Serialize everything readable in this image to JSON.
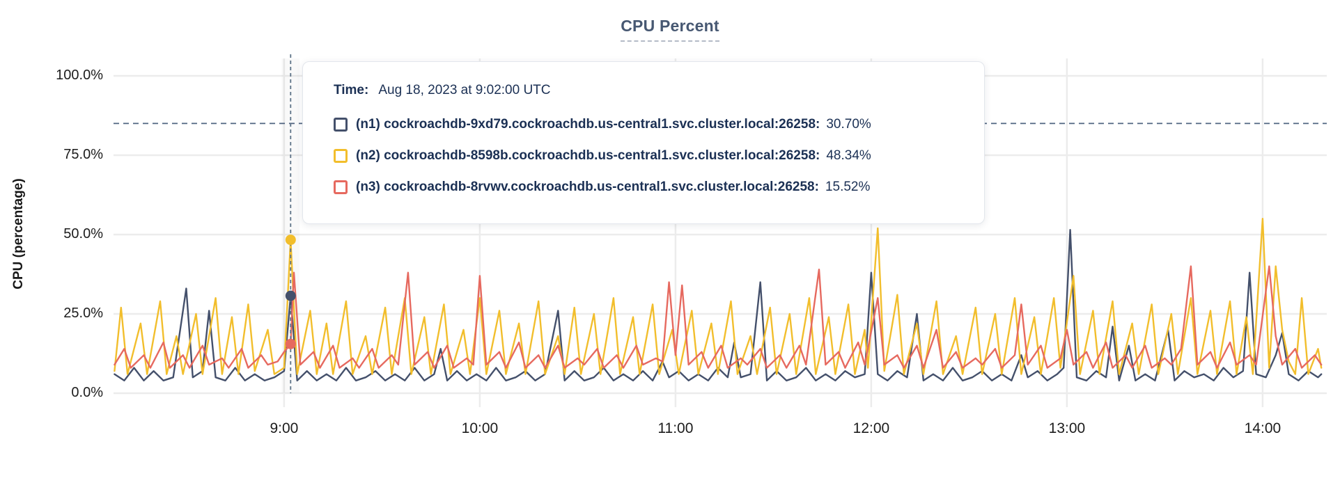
{
  "title": "CPU Percent",
  "y_axis": {
    "label": "CPU (percentage)"
  },
  "tooltip": {
    "time_label": "Time:",
    "time_value": "Aug 18, 2023 at 9:02:00 UTC",
    "rows": [
      {
        "series": "n1",
        "name": "(n1) cockroachdb-9xd79.cockroachdb.us-central1.svc.cluster.local:26258:",
        "value": "30.70%"
      },
      {
        "series": "n2",
        "name": "(n2) cockroachdb-8598b.cockroachdb.us-central1.svc.cluster.local:26258:",
        "value": "48.34%"
      },
      {
        "series": "n3",
        "name": "(n3) cockroachdb-8rvwv.cockroachdb.us-central1.svc.cluster.local:26258:",
        "value": "15.52%"
      }
    ]
  },
  "colors": {
    "n1": "#44506b",
    "n2": "#f2be2c",
    "n3": "#e6695f",
    "grid": "#ececec",
    "threshold": "#4f6480",
    "hover_line": "#5d7287",
    "title": "#475872",
    "tooltip_text": "#1b3054"
  },
  "chart_data": {
    "type": "line",
    "title": "CPU Percent",
    "ylabel": "CPU (percentage)",
    "ylim": [
      0,
      100
    ],
    "grid": true,
    "x_unit": "minutes since 08:08 UTC, axis spans 08:08 - 14:18",
    "x_ticks": [
      {
        "t": 52,
        "label": "9:00"
      },
      {
        "t": 112,
        "label": "10:00"
      },
      {
        "t": 172,
        "label": "11:00"
      },
      {
        "t": 232,
        "label": "12:00"
      },
      {
        "t": 292,
        "label": "13:00"
      },
      {
        "t": 352,
        "label": "14:00"
      }
    ],
    "y_ticks": [
      {
        "v": 0,
        "label": "0.0%"
      },
      {
        "v": 25,
        "label": "25.0%"
      },
      {
        "v": 50,
        "label": "50.0%"
      },
      {
        "v": 75,
        "label": "75.0%"
      },
      {
        "v": 100,
        "label": "100.0%"
      }
    ],
    "threshold_pct": 85,
    "hover": {
      "t": 54,
      "time": "Aug 18, 2023 at 9:02:00 UTC",
      "values": {
        "n1": 30.7,
        "n2": 48.34,
        "n3": 15.52
      }
    },
    "series": [
      {
        "id": "n1",
        "name": "(n1) cockroachdb-9xd79.cockroachdb.us-central1.svc.cluster.local:26258",
        "points": [
          0,
          6,
          3,
          4,
          6,
          8,
          9,
          4,
          12,
          7,
          15,
          4,
          18,
          5,
          22,
          33,
          24,
          5,
          27,
          7,
          29,
          26,
          31,
          5,
          34,
          4,
          37,
          8,
          40,
          4,
          43,
          6,
          46,
          4,
          49,
          5,
          52,
          7,
          54,
          30.7,
          56,
          4,
          59,
          7,
          62,
          4,
          65,
          6,
          68,
          4,
          71,
          8,
          74,
          4,
          77,
          5,
          80,
          7,
          83,
          4,
          86,
          6,
          89,
          4,
          92,
          8,
          95,
          4,
          98,
          6,
          100,
          14,
          102,
          4,
          105,
          7,
          108,
          4,
          111,
          6,
          114,
          4,
          117,
          8,
          120,
          4,
          123,
          5,
          126,
          7,
          129,
          4,
          132,
          6,
          136,
          26,
          138,
          4,
          141,
          7,
          144,
          4,
          147,
          5,
          150,
          8,
          153,
          4,
          156,
          6,
          159,
          4,
          162,
          7,
          165,
          4,
          168,
          10,
          170,
          5,
          173,
          7,
          176,
          4,
          179,
          6,
          182,
          4,
          185,
          8,
          188,
          5,
          190,
          16,
          192,
          5,
          195,
          6,
          198,
          35,
          200,
          4,
          203,
          7,
          206,
          4,
          209,
          5,
          212,
          8,
          215,
          4,
          218,
          6,
          221,
          4,
          224,
          7,
          227,
          5,
          230,
          6,
          232,
          38,
          234,
          6,
          237,
          4,
          240,
          7,
          243,
          5,
          246,
          25,
          248,
          4,
          251,
          6,
          254,
          4,
          257,
          8,
          260,
          4,
          263,
          5,
          266,
          7,
          269,
          4,
          272,
          6,
          275,
          4,
          278,
          12,
          280,
          5,
          283,
          7,
          286,
          4,
          289,
          6,
          291,
          8,
          293,
          51.5,
          295,
          5,
          298,
          4,
          301,
          7,
          304,
          5,
          306,
          21,
          308,
          4,
          311,
          15,
          313,
          4,
          316,
          6,
          319,
          4,
          323,
          20,
          325,
          4,
          328,
          7,
          331,
          5,
          334,
          6,
          337,
          4,
          340,
          8,
          343,
          5,
          346,
          7,
          348,
          38,
          350,
          6,
          353,
          5,
          356,
          12,
          358,
          19,
          360,
          6,
          363,
          4,
          366,
          7,
          369,
          5,
          370,
          6
        ]
      },
      {
        "id": "n2",
        "name": "(n2) cockroachdb-8598b.cockroachdb.us-central1.svc.cluster.local:26258",
        "points": [
          0,
          7,
          2,
          27,
          4,
          6,
          8,
          22,
          10,
          6,
          14,
          29,
          16,
          6,
          19,
          18,
          21,
          6,
          25,
          25,
          27,
          6,
          31,
          30,
          33,
          6,
          36,
          24,
          38,
          6,
          41,
          28,
          43,
          7,
          47,
          20,
          49,
          6,
          52,
          8,
          54,
          48.3,
          56,
          6,
          60,
          26,
          62,
          6,
          65,
          22,
          67,
          6,
          71,
          29,
          73,
          6,
          77,
          18,
          79,
          6,
          83,
          27,
          85,
          6,
          89,
          30,
          91,
          6,
          95,
          24,
          97,
          6,
          101,
          28,
          103,
          6,
          107,
          20,
          109,
          6,
          112,
          30,
          114,
          6,
          118,
          26,
          120,
          6,
          124,
          22,
          126,
          6,
          130,
          29,
          132,
          6,
          136,
          18,
          138,
          6,
          141,
          27,
          143,
          6,
          147,
          25,
          149,
          6,
          153,
          30,
          155,
          6,
          159,
          24,
          161,
          6,
          165,
          28,
          167,
          6,
          171,
          20,
          173,
          6,
          177,
          26,
          179,
          6,
          183,
          22,
          185,
          6,
          189,
          29,
          191,
          6,
          195,
          18,
          197,
          6,
          201,
          27,
          203,
          6,
          207,
          25,
          209,
          6,
          213,
          30,
          215,
          6,
          219,
          24,
          221,
          6,
          225,
          28,
          227,
          6,
          230,
          20,
          231,
          8,
          234,
          52,
          236,
          7,
          240,
          31,
          242,
          6,
          246,
          22,
          248,
          6,
          252,
          29,
          254,
          6,
          258,
          18,
          260,
          6,
          264,
          27,
          266,
          6,
          270,
          25,
          272,
          6,
          276,
          30,
          278,
          6,
          282,
          24,
          284,
          6,
          288,
          30,
          290,
          8,
          294,
          37,
          296,
          6,
          300,
          26,
          302,
          6,
          306,
          29,
          308,
          6,
          312,
          22,
          314,
          6,
          318,
          28,
          320,
          6,
          324,
          25,
          326,
          6,
          330,
          30,
          332,
          6,
          336,
          26,
          338,
          6,
          342,
          29,
          344,
          6,
          347,
          24,
          349,
          6,
          352,
          55,
          354,
          8,
          356,
          40,
          358,
          20,
          360,
          10,
          362,
          6,
          364,
          30,
          366,
          6,
          369,
          14,
          370,
          8
        ]
      },
      {
        "id": "n3",
        "name": "(n3) cockroachdb-8rvwv.cockroachdb.us-central1.svc.cluster.local:26258",
        "points": [
          0,
          9,
          3,
          14,
          5,
          8,
          9,
          12,
          11,
          8,
          15,
          16,
          17,
          8,
          21,
          12,
          23,
          8,
          27,
          15,
          29,
          9,
          33,
          11,
          35,
          8,
          39,
          14,
          41,
          8,
          45,
          12,
          47,
          9,
          50,
          10,
          52,
          13,
          54,
          15.5,
          55,
          38,
          57,
          9,
          61,
          13,
          63,
          8,
          67,
          15,
          69,
          8,
          73,
          11,
          75,
          8,
          79,
          14,
          81,
          8,
          85,
          12,
          87,
          9,
          90,
          38,
          92,
          9,
          96,
          13,
          98,
          8,
          102,
          15,
          104,
          8,
          108,
          11,
          110,
          9,
          112,
          37,
          114,
          9,
          118,
          13,
          120,
          8,
          124,
          16,
          126,
          8,
          130,
          12,
          132,
          8,
          136,
          15,
          138,
          8,
          142,
          11,
          144,
          9,
          148,
          14,
          150,
          8,
          154,
          12,
          156,
          8,
          160,
          15,
          162,
          9,
          166,
          11,
          168,
          10,
          170,
          35,
          172,
          12,
          174,
          34,
          176,
          9,
          180,
          13,
          182,
          8,
          186,
          15,
          188,
          8,
          192,
          11,
          194,
          9,
          198,
          14,
          200,
          8,
          204,
          12,
          206,
          8,
          210,
          15,
          212,
          9,
          216,
          39,
          218,
          9,
          222,
          13,
          224,
          8,
          228,
          16,
          230,
          9,
          234,
          30,
          236,
          9,
          240,
          12,
          242,
          8,
          246,
          15,
          248,
          8,
          252,
          20,
          254,
          8,
          258,
          13,
          260,
          8,
          264,
          11,
          266,
          9,
          270,
          14,
          272,
          8,
          276,
          12,
          278,
          28,
          280,
          9,
          284,
          15,
          286,
          8,
          290,
          11,
          292,
          20,
          294,
          9,
          298,
          13,
          300,
          8,
          304,
          16,
          306,
          8,
          310,
          12,
          312,
          8,
          316,
          15,
          318,
          8,
          322,
          11,
          324,
          9,
          327,
          14,
          330,
          40,
          332,
          9,
          336,
          13,
          338,
          8,
          342,
          16,
          344,
          9,
          348,
          12,
          350,
          9,
          354,
          40,
          356,
          18,
          358,
          9,
          362,
          14,
          364,
          8,
          368,
          12,
          370,
          9
        ]
      }
    ]
  }
}
